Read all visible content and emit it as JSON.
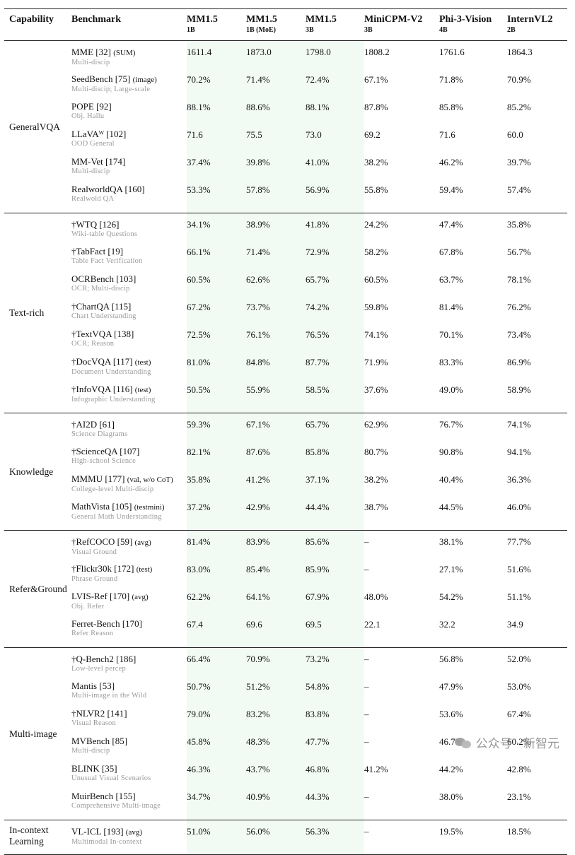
{
  "headers": {
    "capability": "Capability",
    "benchmark": "Benchmark",
    "models": [
      {
        "name": "MM1.5",
        "size": "1B"
      },
      {
        "name": "MM1.5",
        "size": "1B (MoE)"
      },
      {
        "name": "MM1.5",
        "size": "3B"
      },
      {
        "name": "MiniCPM-V2",
        "size": "3B"
      },
      {
        "name": "Phi-3-Vision",
        "size": "4B"
      },
      {
        "name": "InternVL2",
        "size": "2B"
      }
    ]
  },
  "groups": [
    {
      "name": "GeneralVQA",
      "rows": [
        {
          "bench": "MME [32]",
          "note": "(SUM)",
          "sub": "Multi-discip",
          "vals": [
            "1611.4",
            "1873.0",
            "1798.0",
            "1808.2",
            "1761.6",
            "1864.3"
          ]
        },
        {
          "bench": "SeedBench [75]",
          "note": "(image)",
          "sub": "Multi-discip; Large-scale",
          "vals": [
            "70.2%",
            "71.4%",
            "72.4%",
            "67.1%",
            "71.8%",
            "70.9%"
          ]
        },
        {
          "bench": "POPE [92]",
          "note": "",
          "sub": "Obj. Hallu",
          "vals": [
            "88.1%",
            "88.6%",
            "88.1%",
            "87.8%",
            "85.8%",
            "85.2%"
          ]
        },
        {
          "bench": "LLaVAᵂ [102]",
          "note": "",
          "sub": "OOD General",
          "vals": [
            "71.6",
            "75.5",
            "73.0",
            "69.2",
            "71.6",
            "60.0"
          ]
        },
        {
          "bench": "MM-Vet [174]",
          "note": "",
          "sub": "Multi-discip",
          "vals": [
            "37.4%",
            "39.8%",
            "41.0%",
            "38.2%",
            "46.2%",
            "39.7%"
          ]
        },
        {
          "bench": "RealworldQA [160]",
          "note": "",
          "sub": "Realwold QA",
          "vals": [
            "53.3%",
            "57.8%",
            "56.9%",
            "55.8%",
            "59.4%",
            "57.4%"
          ]
        }
      ]
    },
    {
      "name": "Text-rich",
      "rows": [
        {
          "bench": "†WTQ [126]",
          "note": "",
          "sub": "Wiki-table Questions",
          "vals": [
            "34.1%",
            "38.9%",
            "41.8%",
            "24.2%",
            "47.4%",
            "35.8%"
          ]
        },
        {
          "bench": "†TabFact [19]",
          "note": "",
          "sub": "Table Fact Verification",
          "vals": [
            "66.1%",
            "71.4%",
            "72.9%",
            "58.2%",
            "67.8%",
            "56.7%"
          ]
        },
        {
          "bench": "OCRBench [103]",
          "note": "",
          "sub": "OCR; Multi-discip",
          "vals": [
            "60.5%",
            "62.6%",
            "65.7%",
            "60.5%",
            "63.7%",
            "78.1%"
          ]
        },
        {
          "bench": "†ChartQA [115]",
          "note": "",
          "sub": "Chart Understanding",
          "vals": [
            "67.2%",
            "73.7%",
            "74.2%",
            "59.8%",
            "81.4%",
            "76.2%"
          ]
        },
        {
          "bench": "†TextVQA [138]",
          "note": "",
          "sub": "OCR; Reason",
          "vals": [
            "72.5%",
            "76.1%",
            "76.5%",
            "74.1%",
            "70.1%",
            "73.4%"
          ]
        },
        {
          "bench": "†DocVQA [117]",
          "note": "(test)",
          "sub": "Document Understanding",
          "vals": [
            "81.0%",
            "84.8%",
            "87.7%",
            "71.9%",
            "83.3%",
            "86.9%"
          ]
        },
        {
          "bench": "†InfoVQA [116]",
          "note": "(test)",
          "sub": "Infographic Understanding",
          "vals": [
            "50.5%",
            "55.9%",
            "58.5%",
            "37.6%",
            "49.0%",
            "58.9%"
          ]
        }
      ]
    },
    {
      "name": "Knowledge",
      "rows": [
        {
          "bench": "†AI2D [61]",
          "note": "",
          "sub": "Science Diagrams",
          "vals": [
            "59.3%",
            "67.1%",
            "65.7%",
            "62.9%",
            "76.7%",
            "74.1%"
          ]
        },
        {
          "bench": "†ScienceQA [107]",
          "note": "",
          "sub": "High-school Science",
          "vals": [
            "82.1%",
            "87.6%",
            "85.8%",
            "80.7%",
            "90.8%",
            "94.1%"
          ]
        },
        {
          "bench": "MMMU [177]",
          "note": "(val, w/o CoT)",
          "sub": "College-level Multi-discip",
          "vals": [
            "35.8%",
            "41.2%",
            "37.1%",
            "38.2%",
            "40.4%",
            "36.3%"
          ]
        },
        {
          "bench": "MathVista [105]",
          "note": "(testmini)",
          "sub": "General Math Understanding",
          "vals": [
            "37.2%",
            "42.9%",
            "44.4%",
            "38.7%",
            "44.5%",
            "46.0%"
          ]
        }
      ]
    },
    {
      "name": "Refer&Ground",
      "rows": [
        {
          "bench": "†RefCOCO [59]",
          "note": "(avg)",
          "sub": "Visual Ground",
          "vals": [
            "81.4%",
            "83.9%",
            "85.6%",
            "–",
            "38.1%",
            "77.7%"
          ]
        },
        {
          "bench": "†Flickr30k [172]",
          "note": "(test)",
          "sub": "Phrase Ground",
          "vals": [
            "83.0%",
            "85.4%",
            "85.9%",
            "–",
            "27.1%",
            "51.6%"
          ]
        },
        {
          "bench": "LVIS-Ref [170]",
          "note": "(avg)",
          "sub": "Obj. Refer",
          "vals": [
            "62.2%",
            "64.1%",
            "67.9%",
            "48.0%",
            "54.2%",
            "51.1%"
          ]
        },
        {
          "bench": "Ferret-Bench [170]",
          "note": "",
          "sub": "Refer Reason",
          "vals": [
            "67.4",
            "69.6",
            "69.5",
            "22.1",
            "32.2",
            "34.9"
          ]
        }
      ]
    },
    {
      "name": "Multi-image",
      "rows": [
        {
          "bench": "†Q-Bench2 [186]",
          "note": "",
          "sub": "Low-level percep",
          "vals": [
            "66.4%",
            "70.9%",
            "73.2%",
            "–",
            "56.8%",
            "52.0%"
          ]
        },
        {
          "bench": "Mantis [53]",
          "note": "",
          "sub": "Multi-image in the Wild",
          "vals": [
            "50.7%",
            "51.2%",
            "54.8%",
            "–",
            "47.9%",
            "53.0%"
          ]
        },
        {
          "bench": "†NLVR2 [141]",
          "note": "",
          "sub": "Visual Reason",
          "vals": [
            "79.0%",
            "83.2%",
            "83.8%",
            "–",
            "53.6%",
            "67.4%"
          ]
        },
        {
          "bench": "MVBench [85]",
          "note": "",
          "sub": "Multi-discip",
          "vals": [
            "45.8%",
            "48.3%",
            "47.7%",
            "–",
            "46.7%",
            "60.2%"
          ]
        },
        {
          "bench": "BLINK [35]",
          "note": "",
          "sub": "Unusual Visual Scenarios",
          "vals": [
            "46.3%",
            "43.7%",
            "46.8%",
            "41.2%",
            "44.2%",
            "42.8%"
          ]
        },
        {
          "bench": "MuirBench [155]",
          "note": "",
          "sub": "Comprehensive Multi-image",
          "vals": [
            "34.7%",
            "40.9%",
            "44.3%",
            "–",
            "38.0%",
            "23.1%"
          ]
        }
      ]
    },
    {
      "name": "In-context Learning",
      "rows": [
        {
          "bench": "VL-ICL [193]",
          "note": "(avg)",
          "sub": "Multimodal In-context",
          "vals": [
            "51.0%",
            "56.0%",
            "56.3%",
            "–",
            "19.5%",
            "18.5%"
          ]
        }
      ]
    }
  ],
  "watermark": {
    "text": "公众号 · 新智元",
    "icon": "wechat-icon"
  }
}
